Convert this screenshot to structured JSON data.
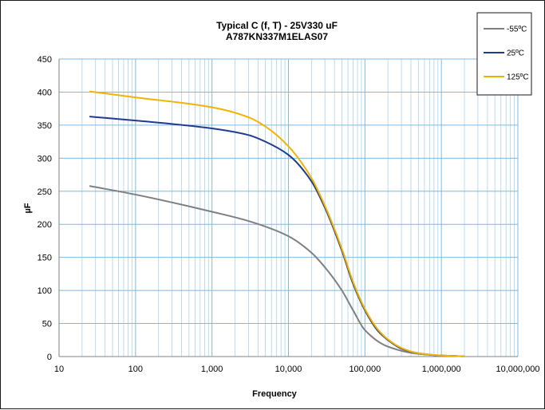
{
  "chart_data": {
    "type": "line",
    "title": "Typical C (f, T) - 25V330 uF",
    "subtitle": "A787KN337M1ELAS07",
    "xlabel": "Frequency",
    "ylabel": "µF",
    "x_scale": "log",
    "xlim": [
      10,
      10000000
    ],
    "ylim": [
      0,
      450
    ],
    "grid": true,
    "legend_position": "top-right",
    "x_tick_labels": [
      "10",
      "100",
      "1,000",
      "10,000",
      "100,000",
      "1,000,000",
      "10,000,000"
    ],
    "y_tick_labels": [
      "0",
      "50",
      "100",
      "150",
      "200",
      "250",
      "300",
      "350",
      "400",
      "450"
    ],
    "series": [
      {
        "name": "-55ºC",
        "color": "#7f7f7f",
        "x": [
          25,
          100,
          1000,
          3000,
          10000,
          20000,
          30000,
          50000,
          70000,
          100000,
          200000,
          500000,
          1000000,
          2000000
        ],
        "values": [
          258,
          245,
          219,
          205,
          182,
          157,
          135,
          100,
          70,
          40,
          15,
          4,
          1.5,
          0.5
        ]
      },
      {
        "name": "25ºC",
        "color": "#1f3a93",
        "x": [
          25,
          100,
          1000,
          3000,
          5000,
          10000,
          20000,
          30000,
          50000,
          70000,
          100000,
          150000,
          200000,
          300000,
          500000,
          1000000,
          2000000
        ],
        "values": [
          363,
          357,
          345,
          335,
          325,
          305,
          265,
          225,
          160,
          110,
          70,
          38,
          25,
          12,
          5,
          1.5,
          0.5
        ]
      },
      {
        "name": "125ºC",
        "color": "#f0b400",
        "x": [
          25,
          100,
          1000,
          3000,
          5000,
          10000,
          20000,
          30000,
          50000,
          70000,
          100000,
          150000,
          200000,
          300000,
          500000,
          1000000,
          2000000
        ],
        "values": [
          401,
          392,
          377,
          362,
          348,
          318,
          270,
          228,
          163,
          113,
          72,
          40,
          26,
          13,
          5,
          1.5,
          0.5
        ]
      }
    ]
  }
}
